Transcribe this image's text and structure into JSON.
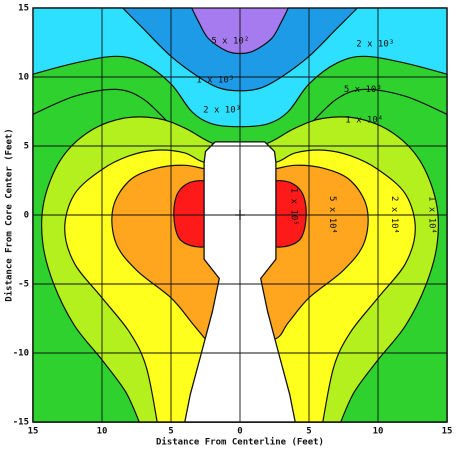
{
  "chart_data": {
    "type": "contour",
    "xlabel": "Distance From Centerline (Feet)",
    "ylabel": "Distance From Core Center (Feet)",
    "xlim": [
      -15,
      15
    ],
    "ylim": [
      -15,
      15
    ],
    "xticks": [
      {
        "value": -15,
        "label": "15"
      },
      {
        "value": -10,
        "label": "10"
      },
      {
        "value": -5,
        "label": "5"
      },
      0,
      5,
      10,
      15
    ],
    "yticks": [
      -15,
      -10,
      -5,
      0,
      5,
      10,
      15
    ],
    "grid": true,
    "levels": [
      500,
      1000,
      2000,
      5000,
      10000,
      20000,
      50000,
      100000
    ],
    "level_labels": [
      "5 x 10²",
      "1 x 10³",
      "2 x 10³",
      "5 x 10³",
      "1 x 10⁴",
      "2 x 10⁴",
      "5 x 10⁴",
      "1 x 10⁵"
    ],
    "fill_colors": [
      "#a77bf0",
      "#1e9be6",
      "#2ee0ff",
      "#2ed12e",
      "#2ed12e",
      "#b4f01e",
      "#ffff1e",
      "#ffa51e",
      "#ff1a1a"
    ]
  }
}
